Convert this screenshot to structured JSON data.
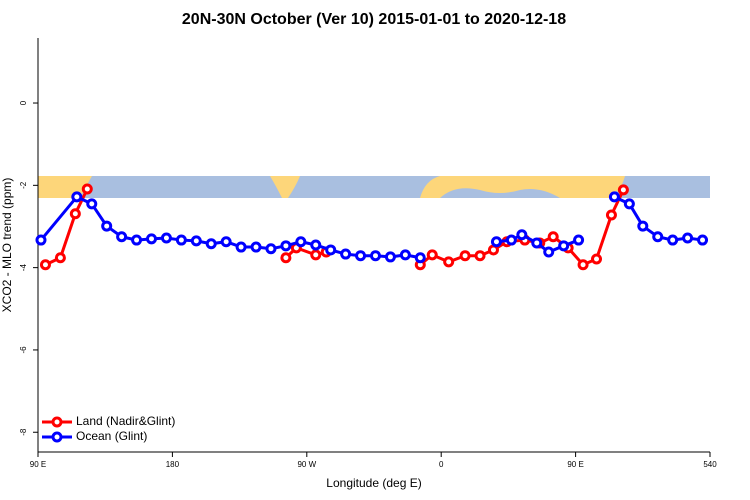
{
  "chart_data": {
    "type": "line",
    "title": "20N-30N October (Ver 10)   2015-01-01 to 2020-12-18",
    "x_label": "Longitude (deg E)",
    "y_label": "XCO2 - MLO trend (ppm)",
    "xlim": [
      90,
      540
    ],
    "ylim": [
      -8.48,
      1.58
    ],
    "xticks": [
      {
        "value": 90,
        "label": "90 E"
      },
      180,
      {
        "value": 270,
        "label": "90 W"
      },
      {
        "value": 360,
        "label": "0"
      },
      {
        "value": 450,
        "label": "90 E"
      },
      540
    ],
    "yticks": [
      0,
      -2,
      -4,
      -6,
      -8
    ],
    "xtick_labels_override": null,
    "legend": "bottomleft",
    "series": [
      {
        "name": "Land (Nadir&Glint)",
        "color": "#ff0000",
        "x": [
          95,
          105,
          115,
          123,
          190,
          256,
          263,
          276,
          283,
          315,
          346,
          354,
          365,
          376,
          386,
          395,
          404,
          416,
          426,
          435,
          445,
          455,
          464,
          474,
          482
        ],
        "values": [
          -3.93,
          -3.76,
          -2.69,
          -2.09,
          null,
          -3.76,
          -3.52,
          -3.69,
          -3.62,
          null,
          -3.93,
          -3.69,
          -3.86,
          -3.71,
          -3.71,
          -3.57,
          -3.37,
          -3.33,
          -3.4,
          -3.25,
          -3.52,
          -3.93,
          -3.79,
          -2.72,
          -2.11
        ]
      },
      {
        "name": "Ocean (Glint)",
        "color": "#0000ff",
        "x": [
          92,
          116,
          126,
          136,
          146,
          156,
          166,
          176,
          186,
          196,
          206,
          216,
          226,
          236,
          246,
          256,
          266,
          276,
          286,
          296,
          306,
          316,
          326,
          336,
          346,
          370,
          397,
          407,
          414,
          424,
          432,
          442,
          452,
          465,
          476,
          486,
          495,
          505,
          515,
          525,
          535
        ],
        "values": [
          -3.33,
          -2.28,
          -2.45,
          -2.99,
          -3.25,
          -3.33,
          -3.3,
          -3.28,
          -3.33,
          -3.35,
          -3.42,
          -3.37,
          -3.5,
          -3.5,
          -3.54,
          -3.47,
          -3.37,
          -3.45,
          -3.57,
          -3.67,
          -3.71,
          -3.71,
          -3.74,
          -3.69,
          -3.76,
          null,
          -3.37,
          -3.33,
          -3.2,
          -3.4,
          -3.62,
          -3.47,
          -3.33,
          null,
          -2.28,
          -2.45,
          -2.99,
          -3.25,
          -3.33,
          -3.28,
          -3.33
        ]
      }
    ]
  }
}
